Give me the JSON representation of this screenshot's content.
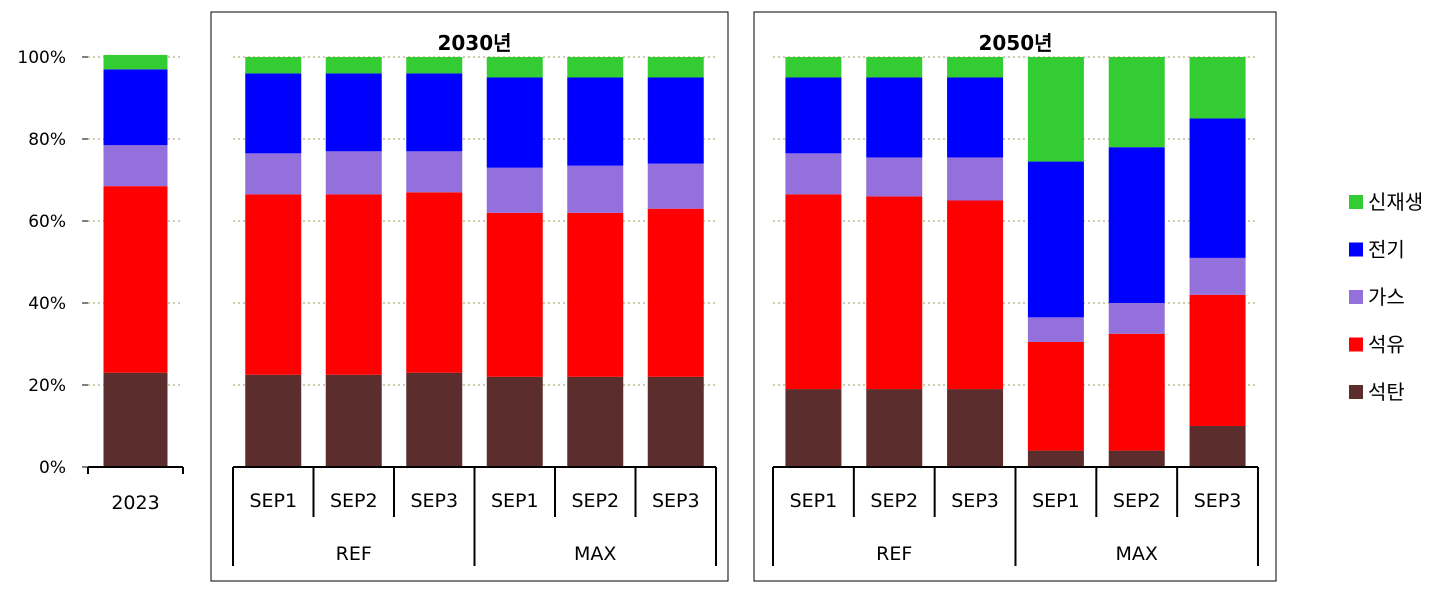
{
  "chart_data": {
    "type": "bar",
    "stacked": true,
    "percent": true,
    "ylim": [
      0,
      100
    ],
    "yticks": [
      "0%",
      "20%",
      "40%",
      "60%",
      "80%",
      "100%"
    ],
    "grid": true,
    "legend_position": "right",
    "series": [
      {
        "name": "석탄",
        "color": "#5c2d2d"
      },
      {
        "name": "석유",
        "color": "#ff0000"
      },
      {
        "name": "가스",
        "color": "#9370db"
      },
      {
        "name": "전기",
        "color": "#0000ff"
      },
      {
        "name": "신재생",
        "color": "#33cc33"
      }
    ],
    "legend_order": [
      "신재생",
      "전기",
      "가스",
      "석유",
      "석탄"
    ],
    "panels": [
      {
        "title": "",
        "groups": [
          {
            "label": "",
            "bars": [
              {
                "label": "2023",
                "values": [
                  23,
                  45.5,
                  10,
                  18.5,
                  3.5
                ]
              }
            ]
          }
        ]
      },
      {
        "title": "2030년",
        "groups": [
          {
            "label": "REF",
            "bars": [
              {
                "label": "SEP1",
                "values": [
                  22.5,
                  44,
                  10,
                  19.5,
                  4
                ]
              },
              {
                "label": "SEP2",
                "values": [
                  22.5,
                  44,
                  10.5,
                  19,
                  4
                ]
              },
              {
                "label": "SEP3",
                "values": [
                  23,
                  44,
                  10,
                  19,
                  4
                ]
              }
            ]
          },
          {
            "label": "MAX",
            "bars": [
              {
                "label": "SEP1",
                "values": [
                  22,
                  40,
                  11,
                  22,
                  5
                ]
              },
              {
                "label": "SEP2",
                "values": [
                  22,
                  40,
                  11.5,
                  21.5,
                  5
                ]
              },
              {
                "label": "SEP3",
                "values": [
                  22,
                  41,
                  11,
                  21,
                  5
                ]
              }
            ]
          }
        ]
      },
      {
        "title": "2050년",
        "groups": [
          {
            "label": "REF",
            "bars": [
              {
                "label": "SEP1",
                "values": [
                  19,
                  47.5,
                  10,
                  18.5,
                  5
                ]
              },
              {
                "label": "SEP2",
                "values": [
                  19,
                  47,
                  9.5,
                  19.5,
                  5
                ]
              },
              {
                "label": "SEP3",
                "values": [
                  19,
                  46,
                  10.5,
                  19.5,
                  5
                ]
              }
            ]
          },
          {
            "label": "MAX",
            "bars": [
              {
                "label": "SEP1",
                "values": [
                  4,
                  26.5,
                  6,
                  38,
                  25.5
                ]
              },
              {
                "label": "SEP2",
                "values": [
                  4,
                  28.5,
                  7.5,
                  38,
                  22
                ]
              },
              {
                "label": "SEP3",
                "values": [
                  10,
                  32,
                  9,
                  34,
                  15
                ]
              }
            ]
          }
        ]
      }
    ]
  }
}
